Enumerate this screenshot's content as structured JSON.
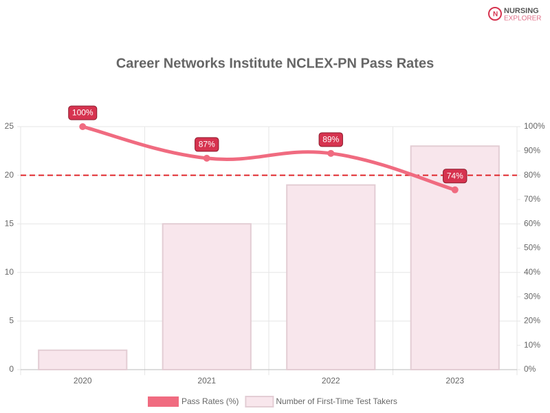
{
  "logo": {
    "line1": "NURSING",
    "line2": "EXPLORER"
  },
  "chart_data": {
    "type": "bar",
    "title": "Career Networks Institute NCLEX-PN Pass Rates",
    "categories": [
      "2020",
      "2021",
      "2022",
      "2023"
    ],
    "series": [
      {
        "name": "Pass Rates (%)",
        "type": "line",
        "axis": "y2",
        "color": "#f06b80",
        "label_color": "#d6334f",
        "values": [
          100,
          87,
          89,
          74
        ],
        "value_labels": [
          "100%",
          "87%",
          "89%",
          "74%"
        ]
      },
      {
        "name": "Number of First-Time Test Takers",
        "type": "bar",
        "axis": "y",
        "color": "#f8e6ec",
        "border_color": "#e3cdd4",
        "values": [
          2,
          15,
          19,
          23
        ]
      }
    ],
    "reference_line": {
      "value": 80,
      "axis": "y2",
      "color": "#e0262b"
    },
    "ylim": [
      0,
      25
    ],
    "yticks": [
      0,
      5,
      10,
      15,
      20,
      25
    ],
    "y2lim": [
      0,
      100
    ],
    "y2ticks": [
      {
        "value": 0,
        "label": "0%"
      },
      {
        "value": 10,
        "label": "10%"
      },
      {
        "value": 20,
        "label": "20%"
      },
      {
        "value": 30,
        "label": "30%"
      },
      {
        "value": 40,
        "label": "40%"
      },
      {
        "value": 50,
        "label": "50%"
      },
      {
        "value": 60,
        "label": "60%"
      },
      {
        "value": 70,
        "label": "70%"
      },
      {
        "value": 80,
        "label": "80%"
      },
      {
        "value": 90,
        "label": "90%"
      },
      {
        "value": 100,
        "label": "100%"
      }
    ],
    "grid": true,
    "legend": "bottom"
  }
}
